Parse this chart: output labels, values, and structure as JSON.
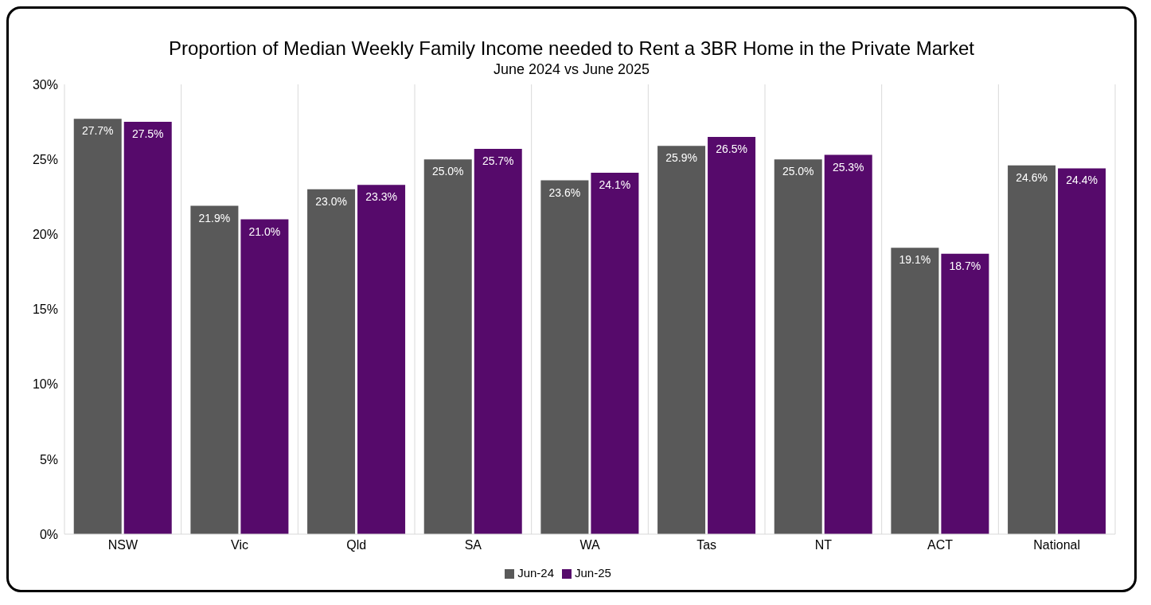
{
  "chart_data": {
    "type": "bar",
    "title": "Proportion of Median Weekly Family Income needed to Rent a 3BR Home in the Private Market",
    "subtitle": "June 2024 vs June 2025",
    "categories": [
      "NSW",
      "Vic",
      "Qld",
      "SA",
      "WA",
      "Tas",
      "NT",
      "ACT",
      "National"
    ],
    "series": [
      {
        "name": "Jun-24",
        "color": "#595959",
        "values": [
          27.7,
          21.9,
          23.0,
          25.0,
          23.6,
          25.9,
          25.0,
          19.1,
          24.6
        ],
        "value_labels": [
          "27.7%",
          "21.9%",
          "23.0%",
          "25.0%",
          "23.6%",
          "25.9%",
          "25.0%",
          "19.1%",
          "24.6%"
        ]
      },
      {
        "name": "Jun-25",
        "color": "#560a6b",
        "values": [
          27.5,
          21.0,
          23.3,
          25.7,
          24.1,
          26.5,
          25.3,
          18.7,
          24.4
        ],
        "value_labels": [
          "27.5%",
          "21.0%",
          "23.3%",
          "25.7%",
          "24.1%",
          "26.5%",
          "25.3%",
          "18.7%",
          "24.4%"
        ]
      }
    ],
    "ylim": [
      0,
      30
    ],
    "yticks": [
      {
        "value": 0,
        "label": "0%"
      },
      {
        "value": 5,
        "label": "5%"
      },
      {
        "value": 10,
        "label": "10%"
      },
      {
        "value": 15,
        "label": "15%"
      },
      {
        "value": 20,
        "label": "20%"
      },
      {
        "value": 25,
        "label": "25%"
      },
      {
        "value": 30,
        "label": "30%"
      }
    ],
    "grid": "x",
    "legend": "bottom"
  }
}
